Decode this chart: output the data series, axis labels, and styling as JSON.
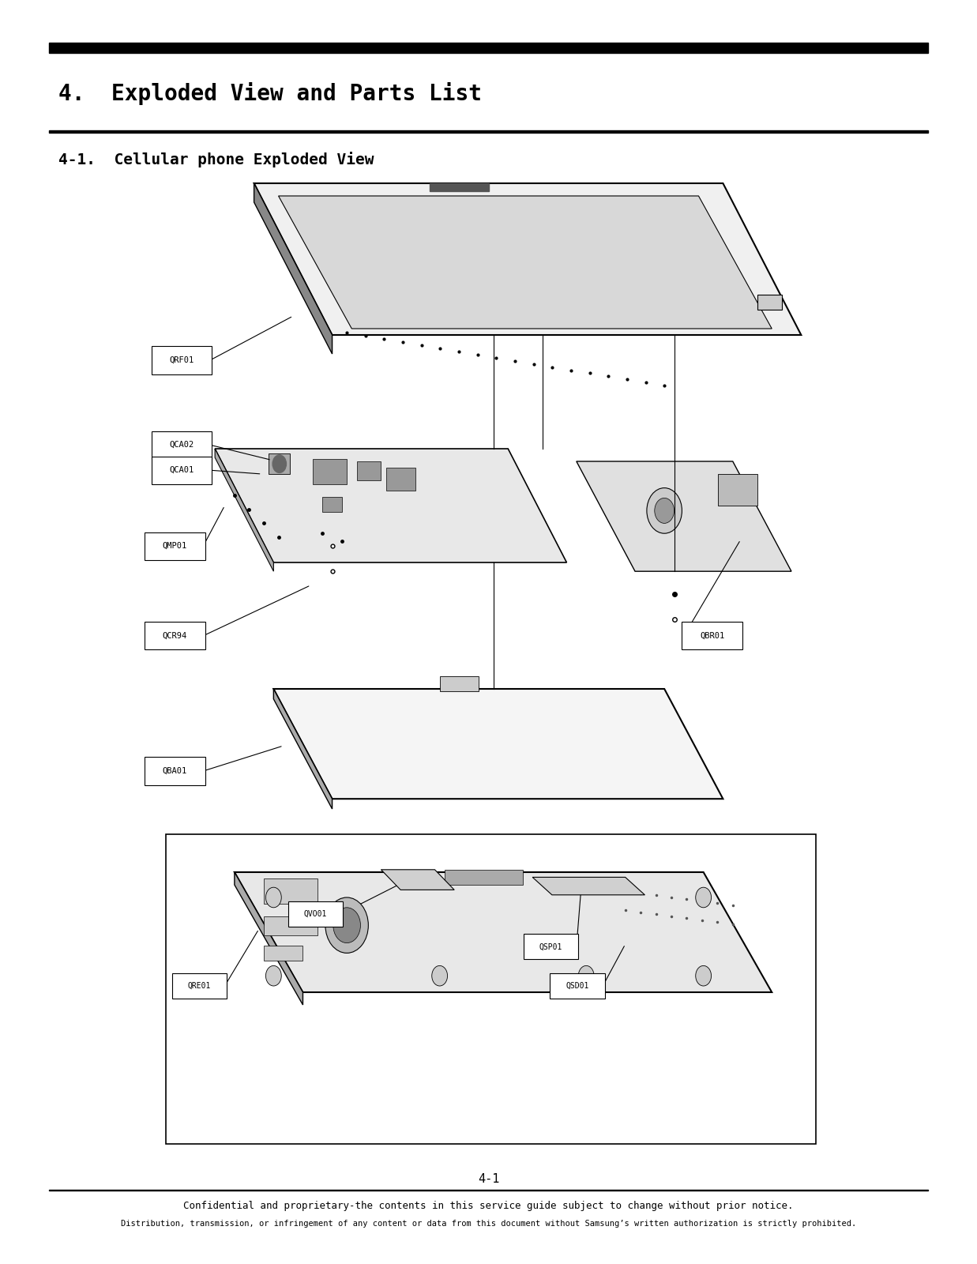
{
  "title1": "4.  Exploded View and Parts List",
  "title2": "4-1.  Cellular phone Exploded View",
  "page_number": "4-1",
  "footer_line1": "Confidential and proprietary-the contents in this service guide subject to change without prior notice.",
  "footer_line2": "Distribution, transmission, or infringement of any content or data from this document without Samsung’s written authorization is strictly prohibited.",
  "bg_color": "#ffffff",
  "text_color": "#000000"
}
